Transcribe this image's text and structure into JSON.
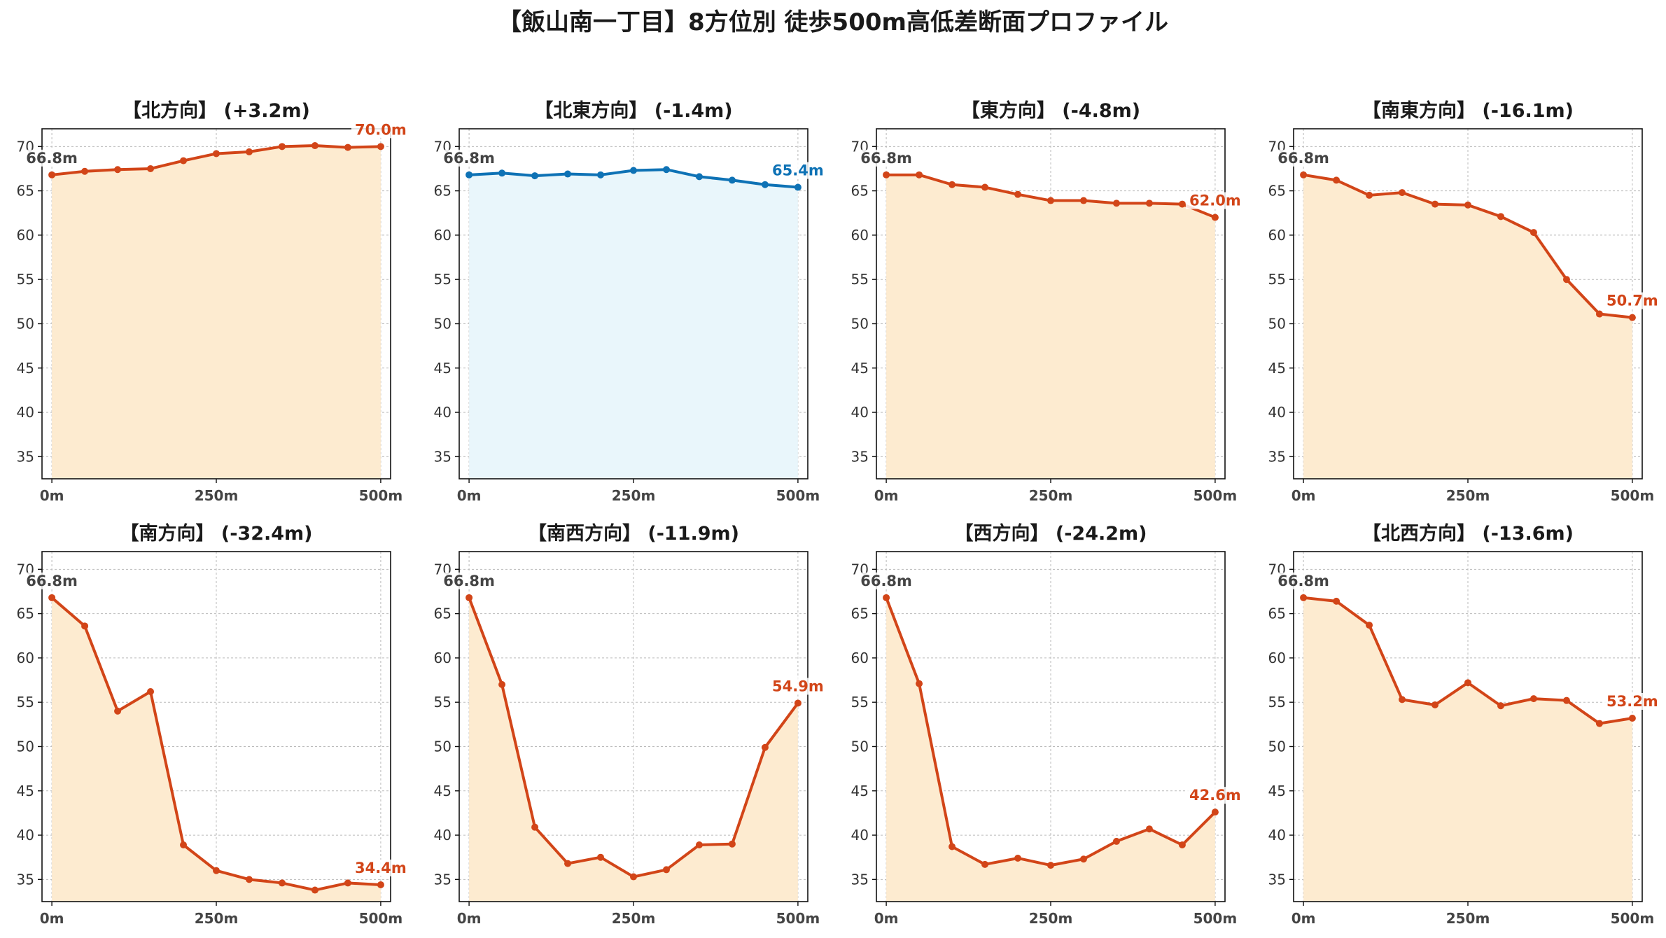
{
  "title": "【飯山南一丁目】8方位別 徒歩500m高低差断面プロファイル",
  "chart_data": [
    {
      "type": "area",
      "title": "【北方向】 (+3.2m)",
      "x": [
        0,
        50,
        100,
        150,
        200,
        250,
        300,
        350,
        400,
        450,
        500
      ],
      "values": [
        66.8,
        67.2,
        67.4,
        67.5,
        68.4,
        69.2,
        69.4,
        70.0,
        70.1,
        69.9,
        70.0
      ],
      "start_label": "66.8m",
      "end_label": "70.0m",
      "line_color": "#d24518",
      "fill_color": "#fdebd0",
      "ylim": [
        32.5,
        72
      ],
      "xlim": [
        -15,
        515
      ],
      "yticks": [
        35,
        40,
        45,
        50,
        55,
        60,
        65,
        70
      ],
      "xticks": [
        0,
        250,
        500
      ],
      "xticklabels": [
        "0m",
        "250m",
        "500m"
      ],
      "grid": true
    },
    {
      "type": "area",
      "title": "【北東方向】 (-1.4m)",
      "x": [
        0,
        50,
        100,
        150,
        200,
        250,
        300,
        350,
        400,
        450,
        500
      ],
      "values": [
        66.8,
        67.0,
        66.7,
        66.9,
        66.8,
        67.3,
        67.4,
        66.6,
        66.2,
        65.7,
        65.4
      ],
      "start_label": "66.8m",
      "end_label": "65.4m",
      "line_color": "#0e72b5",
      "fill_color": "#e9f6fb",
      "ylim": [
        32.5,
        72
      ],
      "xlim": [
        -15,
        515
      ],
      "yticks": [
        35,
        40,
        45,
        50,
        55,
        60,
        65,
        70
      ],
      "xticks": [
        0,
        250,
        500
      ],
      "xticklabels": [
        "0m",
        "250m",
        "500m"
      ],
      "grid": true
    },
    {
      "type": "area",
      "title": "【東方向】 (-4.8m)",
      "x": [
        0,
        50,
        100,
        150,
        200,
        250,
        300,
        350,
        400,
        450,
        500
      ],
      "values": [
        66.8,
        66.8,
        65.7,
        65.4,
        64.6,
        63.9,
        63.9,
        63.6,
        63.6,
        63.5,
        62.0
      ],
      "start_label": "66.8m",
      "end_label": "62.0m",
      "line_color": "#d24518",
      "fill_color": "#fdebd0",
      "ylim": [
        32.5,
        72
      ],
      "xlim": [
        -15,
        515
      ],
      "yticks": [
        35,
        40,
        45,
        50,
        55,
        60,
        65,
        70
      ],
      "xticks": [
        0,
        250,
        500
      ],
      "xticklabels": [
        "0m",
        "250m",
        "500m"
      ],
      "grid": true
    },
    {
      "type": "area",
      "title": "【南東方向】 (-16.1m)",
      "x": [
        0,
        50,
        100,
        150,
        200,
        250,
        300,
        350,
        400,
        450,
        500
      ],
      "values": [
        66.8,
        66.2,
        64.5,
        64.8,
        63.5,
        63.4,
        62.1,
        60.3,
        55.0,
        51.1,
        50.7
      ],
      "start_label": "66.8m",
      "end_label": "50.7m",
      "line_color": "#d24518",
      "fill_color": "#fdebd0",
      "ylim": [
        32.5,
        72
      ],
      "xlim": [
        -15,
        515
      ],
      "yticks": [
        35,
        40,
        45,
        50,
        55,
        60,
        65,
        70
      ],
      "xticks": [
        0,
        250,
        500
      ],
      "xticklabels": [
        "0m",
        "250m",
        "500m"
      ],
      "grid": true
    },
    {
      "type": "area",
      "title": "【南方向】 (-32.4m)",
      "x": [
        0,
        50,
        100,
        150,
        200,
        250,
        300,
        350,
        400,
        450,
        500
      ],
      "values": [
        66.8,
        63.6,
        54.0,
        56.2,
        38.9,
        36.0,
        35.0,
        34.6,
        33.8,
        34.6,
        34.4
      ],
      "start_label": "66.8m",
      "end_label": "34.4m",
      "line_color": "#d24518",
      "fill_color": "#fdebd0",
      "ylim": [
        32.5,
        72
      ],
      "xlim": [
        -15,
        515
      ],
      "yticks": [
        35,
        40,
        45,
        50,
        55,
        60,
        65,
        70
      ],
      "xticks": [
        0,
        250,
        500
      ],
      "xticklabels": [
        "0m",
        "250m",
        "500m"
      ],
      "grid": true
    },
    {
      "type": "area",
      "title": "【南西方向】 (-11.9m)",
      "x": [
        0,
        50,
        100,
        150,
        200,
        250,
        300,
        350,
        400,
        450,
        500
      ],
      "values": [
        66.8,
        57.0,
        40.9,
        36.8,
        37.5,
        35.3,
        36.1,
        38.9,
        39.0,
        49.9,
        54.9
      ],
      "start_label": "66.8m",
      "end_label": "54.9m",
      "line_color": "#d24518",
      "fill_color": "#fdebd0",
      "ylim": [
        32.5,
        72
      ],
      "xlim": [
        -15,
        515
      ],
      "yticks": [
        35,
        40,
        45,
        50,
        55,
        60,
        65,
        70
      ],
      "xticks": [
        0,
        250,
        500
      ],
      "xticklabels": [
        "0m",
        "250m",
        "500m"
      ],
      "grid": true
    },
    {
      "type": "area",
      "title": "【西方向】 (-24.2m)",
      "x": [
        0,
        50,
        100,
        150,
        200,
        250,
        300,
        350,
        400,
        450,
        500
      ],
      "values": [
        66.8,
        57.1,
        38.7,
        36.7,
        37.4,
        36.6,
        37.3,
        39.3,
        40.7,
        38.9,
        42.6
      ],
      "start_label": "66.8m",
      "end_label": "42.6m",
      "line_color": "#d24518",
      "fill_color": "#fdebd0",
      "ylim": [
        32.5,
        72
      ],
      "xlim": [
        -15,
        515
      ],
      "yticks": [
        35,
        40,
        45,
        50,
        55,
        60,
        65,
        70
      ],
      "xticks": [
        0,
        250,
        500
      ],
      "xticklabels": [
        "0m",
        "250m",
        "500m"
      ],
      "grid": true
    },
    {
      "type": "area",
      "title": "【北西方向】 (-13.6m)",
      "x": [
        0,
        50,
        100,
        150,
        200,
        250,
        300,
        350,
        400,
        450,
        500
      ],
      "values": [
        66.8,
        66.4,
        63.7,
        55.3,
        54.7,
        57.2,
        54.6,
        55.4,
        55.2,
        52.6,
        53.2
      ],
      "start_label": "66.8m",
      "end_label": "53.2m",
      "line_color": "#d24518",
      "fill_color": "#fdebd0",
      "ylim": [
        32.5,
        72
      ],
      "xlim": [
        -15,
        515
      ],
      "yticks": [
        35,
        40,
        45,
        50,
        55,
        60,
        65,
        70
      ],
      "xticks": [
        0,
        250,
        500
      ],
      "xticklabels": [
        "0m",
        "250m",
        "500m"
      ],
      "grid": true
    }
  ]
}
